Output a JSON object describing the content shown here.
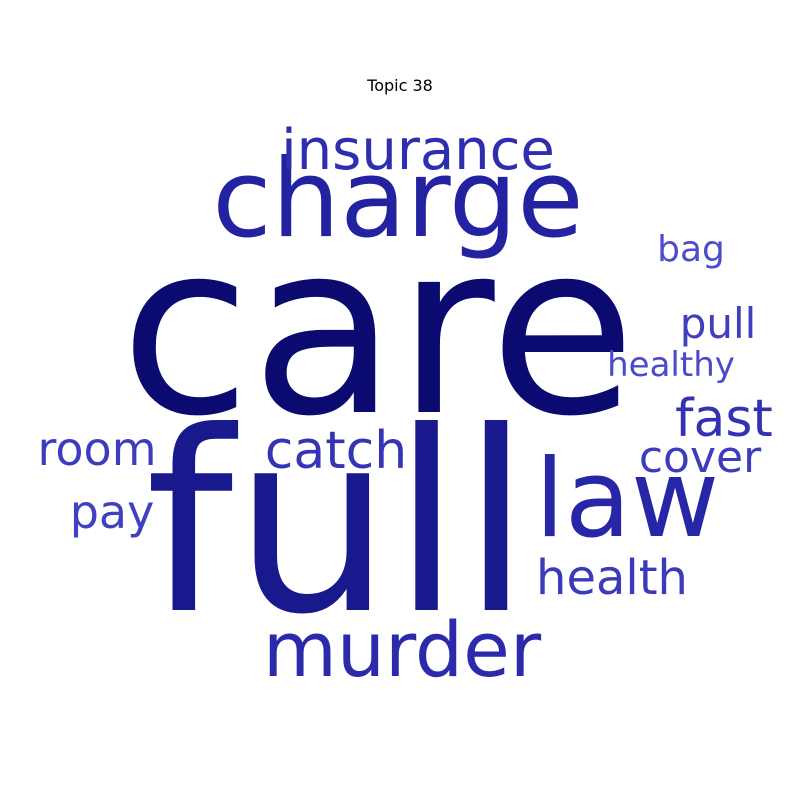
{
  "title": "Topic 38",
  "words": [
    {
      "key": "care",
      "text": "care",
      "color": "#0a0a70"
    },
    {
      "key": "full",
      "text": "full",
      "color": "#19198e"
    },
    {
      "key": "charge",
      "text": "charge",
      "color": "#2323a2"
    },
    {
      "key": "law",
      "text": "law",
      "color": "#2626a6"
    },
    {
      "key": "insurance",
      "text": "insurance",
      "color": "#2e2eae"
    },
    {
      "key": "murder",
      "text": "murder",
      "color": "#2a2aaa"
    },
    {
      "key": "catch",
      "text": "catch",
      "color": "#3434b4"
    },
    {
      "key": "fast",
      "text": "fast",
      "color": "#3232b2"
    },
    {
      "key": "health",
      "text": "health",
      "color": "#3a3aba"
    },
    {
      "key": "room",
      "text": "room",
      "color": "#3c3cbc"
    },
    {
      "key": "cover",
      "text": "cover",
      "color": "#3c3cbc"
    },
    {
      "key": "pull",
      "text": "pull",
      "color": "#3e3ebe"
    },
    {
      "key": "pay",
      "text": "pay",
      "color": "#4040c0"
    },
    {
      "key": "healthy",
      "text": "healthy",
      "color": "#4a4aca"
    },
    {
      "key": "bag",
      "text": "bag",
      "color": "#4c4ccc"
    }
  ]
}
